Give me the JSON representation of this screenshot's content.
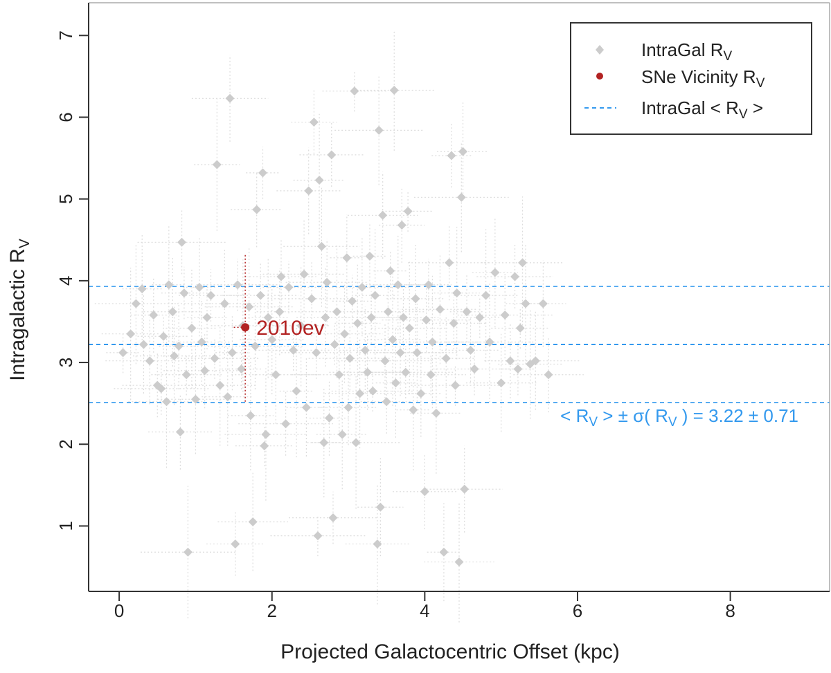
{
  "chart_data": {
    "type": "scatter",
    "title": "",
    "xlabel": "Projected Galactocentric Offset (kpc)",
    "ylabel_main": "Intragalactic R",
    "ylabel_sub": "V",
    "xlim": [
      -0.4,
      9.3
    ],
    "ylim": [
      0.2,
      7.4
    ],
    "xticks": [
      0,
      2,
      4,
      6,
      8
    ],
    "yticks": [
      1,
      2,
      3,
      4,
      5,
      6,
      7
    ],
    "legend": {
      "position": "top-right",
      "entries": [
        {
          "main": "IntraGal R",
          "sub": "V",
          "after": "",
          "symbol": "diamond"
        },
        {
          "main": "SNe Vicinity R",
          "sub": "V",
          "after": "",
          "symbol": "circle"
        },
        {
          "main": "IntraGal < R",
          "sub": "V",
          "after": " >",
          "symbol": "dashed-line"
        }
      ]
    },
    "colors": {
      "intragal": "#cccccc",
      "intragal_err": "#dcdcdc",
      "sne": "#b22222",
      "mean_line": "#3399ee"
    },
    "mean_rv": 3.22,
    "sigma_rv": 0.71,
    "mean_annotation": {
      "prefix": "< R",
      "sub1": "V",
      "mid": " > ± σ( R",
      "sub2": "V",
      "suffix": " ) =  3.22 ± 0.71"
    },
    "sne": {
      "label": "2010ev",
      "x": 1.65,
      "y": 3.43,
      "y_err_low": 2.52,
      "y_err_high": 4.32,
      "x_err_low": 1.5,
      "x_err_high": 1.72
    },
    "series": [
      {
        "name": "IntraGal R_V",
        "points": [
          [
            0.05,
            3.12
          ],
          [
            0.15,
            3.35
          ],
          [
            0.22,
            3.72
          ],
          [
            0.3,
            3.9
          ],
          [
            0.32,
            3.22
          ],
          [
            0.4,
            3.02
          ],
          [
            0.45,
            3.58
          ],
          [
            0.5,
            2.72
          ],
          [
            0.55,
            2.68
          ],
          [
            0.58,
            3.32
          ],
          [
            0.62,
            2.52
          ],
          [
            0.65,
            3.95
          ],
          [
            0.7,
            3.62
          ],
          [
            0.72,
            3.08
          ],
          [
            0.78,
            3.2
          ],
          [
            0.8,
            2.15
          ],
          [
            0.82,
            4.47
          ],
          [
            0.85,
            3.85
          ],
          [
            0.88,
            2.85
          ],
          [
            0.9,
            0.68
          ],
          [
            0.95,
            3.42
          ],
          [
            1.0,
            2.55
          ],
          [
            1.05,
            3.92
          ],
          [
            1.08,
            3.25
          ],
          [
            1.12,
            2.9
          ],
          [
            1.15,
            3.55
          ],
          [
            1.2,
            3.82
          ],
          [
            1.25,
            3.05
          ],
          [
            1.28,
            5.42
          ],
          [
            1.32,
            2.72
          ],
          [
            1.38,
            3.72
          ],
          [
            1.42,
            2.58
          ],
          [
            1.45,
            6.23
          ],
          [
            1.48,
            3.12
          ],
          [
            1.52,
            0.78
          ],
          [
            1.55,
            3.95
          ],
          [
            1.6,
            2.92
          ],
          [
            1.62,
            3.45
          ],
          [
            1.7,
            3.68
          ],
          [
            1.72,
            2.35
          ],
          [
            1.75,
            1.05
          ],
          [
            1.78,
            3.2
          ],
          [
            1.8,
            4.87
          ],
          [
            1.85,
            3.82
          ],
          [
            1.88,
            5.32
          ],
          [
            1.9,
            1.98
          ],
          [
            1.92,
            2.12
          ],
          [
            1.95,
            3.55
          ],
          [
            2.0,
            3.28
          ],
          [
            2.05,
            2.85
          ],
          [
            2.1,
            3.62
          ],
          [
            2.12,
            4.05
          ],
          [
            2.18,
            2.25
          ],
          [
            2.22,
            3.92
          ],
          [
            2.28,
            3.15
          ],
          [
            2.32,
            2.65
          ],
          [
            2.38,
            3.45
          ],
          [
            2.42,
            4.08
          ],
          [
            2.45,
            2.45
          ],
          [
            2.48,
            5.1
          ],
          [
            2.52,
            3.78
          ],
          [
            2.55,
            5.94
          ],
          [
            2.58,
            3.12
          ],
          [
            2.6,
            0.88
          ],
          [
            2.62,
            5.23
          ],
          [
            2.65,
            4.42
          ],
          [
            2.68,
            2.02
          ],
          [
            2.7,
            3.55
          ],
          [
            2.72,
            3.98
          ],
          [
            2.75,
            2.32
          ],
          [
            2.78,
            5.54
          ],
          [
            2.8,
            1.1
          ],
          [
            2.82,
            3.22
          ],
          [
            2.85,
            3.62
          ],
          [
            2.88,
            2.85
          ],
          [
            2.92,
            2.12
          ],
          [
            2.95,
            3.35
          ],
          [
            2.98,
            4.28
          ],
          [
            3.0,
            2.45
          ],
          [
            3.02,
            3.05
          ],
          [
            3.05,
            3.75
          ],
          [
            3.08,
            6.32
          ],
          [
            3.1,
            2.02
          ],
          [
            3.12,
            3.48
          ],
          [
            3.15,
            2.62
          ],
          [
            3.18,
            3.92
          ],
          [
            3.22,
            3.15
          ],
          [
            3.25,
            2.88
          ],
          [
            3.28,
            4.3
          ],
          [
            3.3,
            3.55
          ],
          [
            3.32,
            2.65
          ],
          [
            3.35,
            3.82
          ],
          [
            3.38,
            0.78
          ],
          [
            3.4,
            5.84
          ],
          [
            3.42,
            1.23
          ],
          [
            3.45,
            4.8
          ],
          [
            3.48,
            3.02
          ],
          [
            3.5,
            2.52
          ],
          [
            3.52,
            3.62
          ],
          [
            3.55,
            4.12
          ],
          [
            3.58,
            3.28
          ],
          [
            3.6,
            6.33
          ],
          [
            3.62,
            2.75
          ],
          [
            3.65,
            3.95
          ],
          [
            3.68,
            3.12
          ],
          [
            3.7,
            4.68
          ],
          [
            3.72,
            3.55
          ],
          [
            3.75,
            2.88
          ],
          [
            3.78,
            4.85
          ],
          [
            3.8,
            3.42
          ],
          [
            3.85,
            2.42
          ],
          [
            3.88,
            3.78
          ],
          [
            3.9,
            3.12
          ],
          [
            3.95,
            2.62
          ],
          [
            4.0,
            1.42
          ],
          [
            4.02,
            3.52
          ],
          [
            4.05,
            3.95
          ],
          [
            4.08,
            2.85
          ],
          [
            4.1,
            3.25
          ],
          [
            4.15,
            2.38
          ],
          [
            4.2,
            3.65
          ],
          [
            4.25,
            0.68
          ],
          [
            4.28,
            3.05
          ],
          [
            4.32,
            4.22
          ],
          [
            4.35,
            5.53
          ],
          [
            4.38,
            3.48
          ],
          [
            4.4,
            2.72
          ],
          [
            4.42,
            3.85
          ],
          [
            4.45,
            0.56
          ],
          [
            4.48,
            5.02
          ],
          [
            4.5,
            5.58
          ],
          [
            4.52,
            1.45
          ],
          [
            4.55,
            3.62
          ],
          [
            4.6,
            3.15
          ],
          [
            4.65,
            2.92
          ],
          [
            4.72,
            3.55
          ],
          [
            4.8,
            3.82
          ],
          [
            4.85,
            3.25
          ],
          [
            4.92,
            4.1
          ],
          [
            5.0,
            2.75
          ],
          [
            5.05,
            3.58
          ],
          [
            5.12,
            3.02
          ],
          [
            5.18,
            4.05
          ],
          [
            5.22,
            2.92
          ],
          [
            5.25,
            3.42
          ],
          [
            5.28,
            4.22
          ],
          [
            5.32,
            3.72
          ],
          [
            5.38,
            2.98
          ],
          [
            5.45,
            3.02
          ],
          [
            5.55,
            3.72
          ],
          [
            5.62,
            2.85
          ]
        ]
      }
    ]
  }
}
